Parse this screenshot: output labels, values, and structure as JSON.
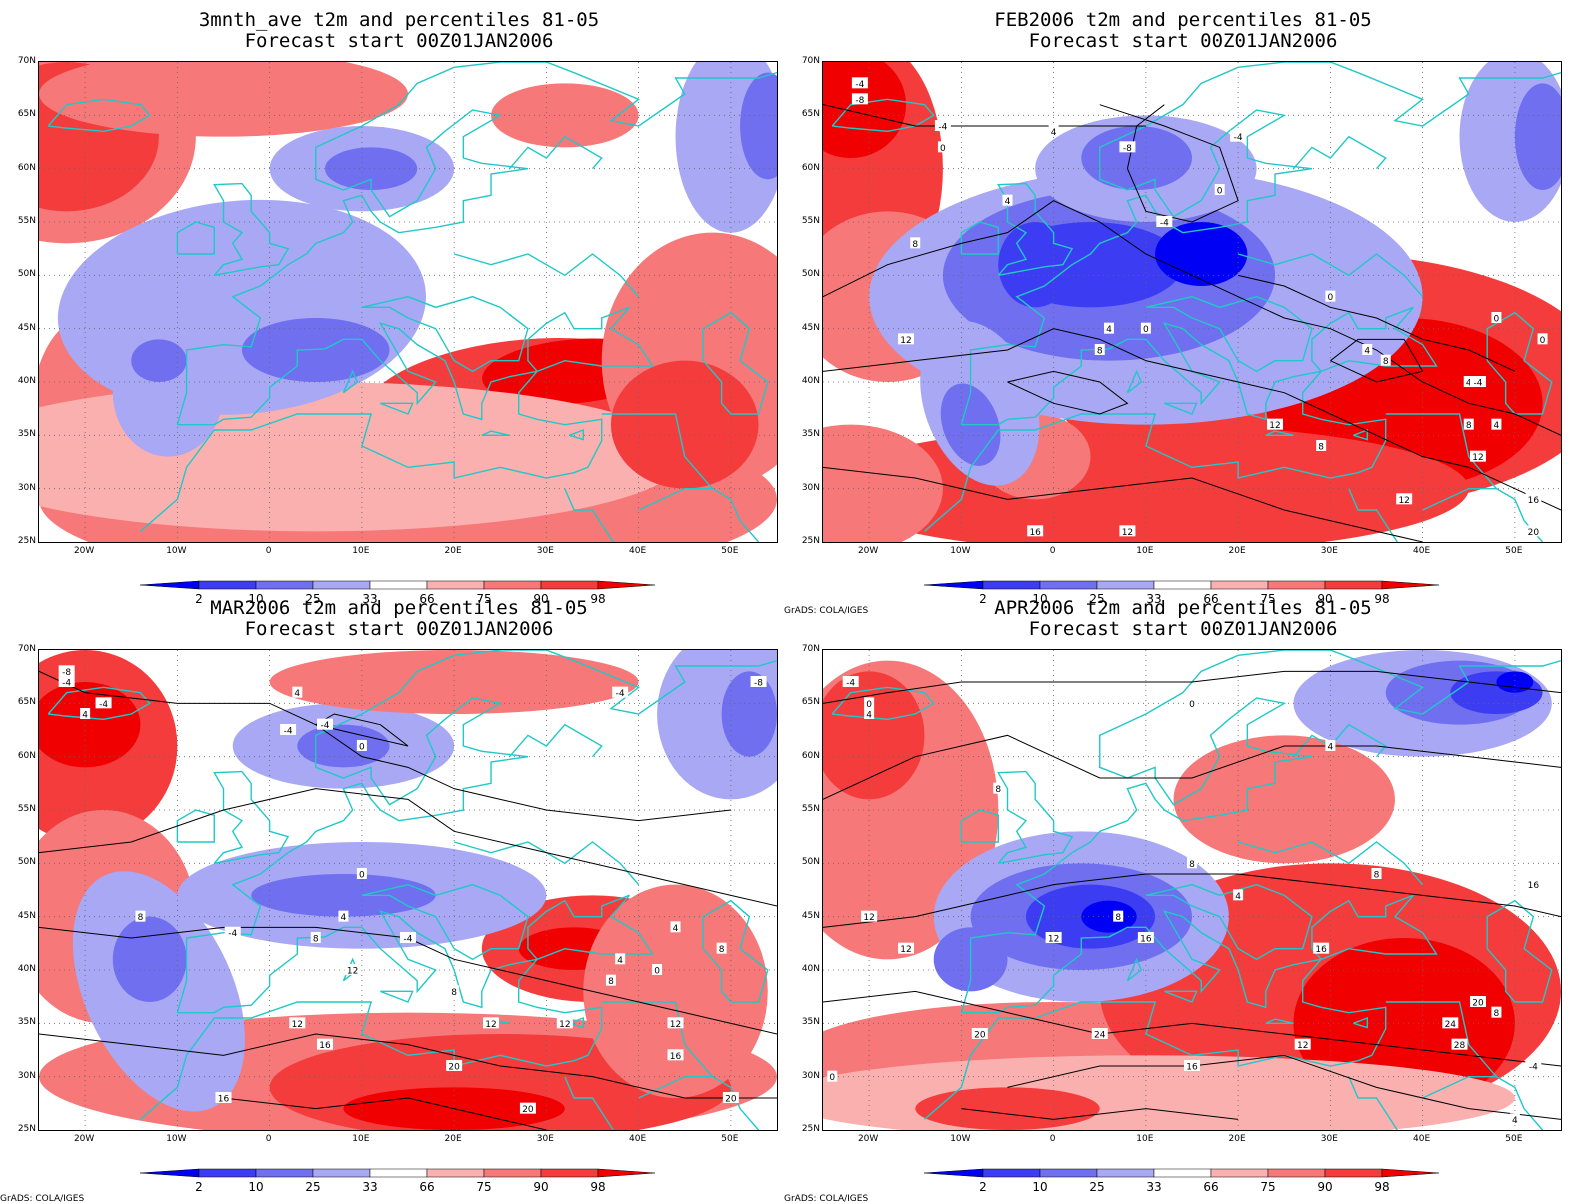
{
  "panels": [
    {
      "title_line1": "3mnth_ave t2m and percentiles 81-05",
      "title_line2": "Forecast start 00Z01JAN2006",
      "credit": "",
      "contour_labels": []
    },
    {
      "title_line1": "FEB2006 t2m and percentiles 81-05",
      "title_line2": "Forecast start 00Z01JAN2006",
      "credit": "GrADS: COLA/IGES",
      "contour_labels": [
        "-4",
        "-8",
        "-4",
        "0",
        "4",
        "-4",
        "0",
        "4",
        "8",
        "-8",
        "-4",
        "0",
        "4",
        "8",
        "12",
        "0",
        "4",
        "8",
        "12",
        "0",
        "4",
        "8",
        "12",
        "-4",
        "16",
        "12",
        "8",
        "16",
        "20",
        "12",
        "0",
        "4"
      ]
    },
    {
      "title_line1": "MAR2006 t2m and percentiles 81-05",
      "title_line2": "Forecast start 00Z01JAN2006",
      "credit": "GrADS: COLA/IGES",
      "contour_labels": [
        "-8",
        "-4",
        "-4",
        "4",
        "-4",
        "-4",
        "0",
        "4",
        "-4",
        "-4",
        "8",
        "12",
        "0",
        "4",
        "8",
        "4",
        "12",
        "8",
        "12",
        "12",
        "16",
        "4",
        "8",
        "0",
        "8",
        "12",
        "16",
        "20",
        "20",
        "16",
        "20",
        "-8",
        "-4"
      ]
    },
    {
      "title_line1": "APR2006 t2m and percentiles 81-05",
      "title_line2": "Forecast start 00Z01JAN2006",
      "credit": "GrADS: COLA/IGES",
      "contour_labels": [
        "-4",
        "0",
        "4",
        "0",
        "4",
        "8",
        "8",
        "4",
        "12",
        "8",
        "12",
        "8",
        "12",
        "16",
        "16",
        "16",
        "20",
        "20",
        "24",
        "12",
        "16",
        "24",
        "28",
        "8",
        "-4",
        "0",
        "4"
      ]
    }
  ],
  "lat_labels": [
    "70N",
    "65N",
    "60N",
    "55N",
    "50N",
    "45N",
    "40N",
    "35N",
    "30N",
    "25N"
  ],
  "lon_labels": [
    "20W",
    "10W",
    "0",
    "10E",
    "20E",
    "30E",
    "40E",
    "50E"
  ],
  "legend": {
    "ticks": [
      "2",
      "10",
      "25",
      "33",
      "66",
      "75",
      "90",
      "98"
    ],
    "colors": [
      "#0000f5",
      "#3c3cf2",
      "#6f6ff0",
      "#a8a8f4",
      "#ffffff",
      "#fbb0b0",
      "#f77878",
      "#f43c3c",
      "#f00000"
    ]
  },
  "colors": {
    "coast": "#20c8c8",
    "contour": "#000000"
  }
}
